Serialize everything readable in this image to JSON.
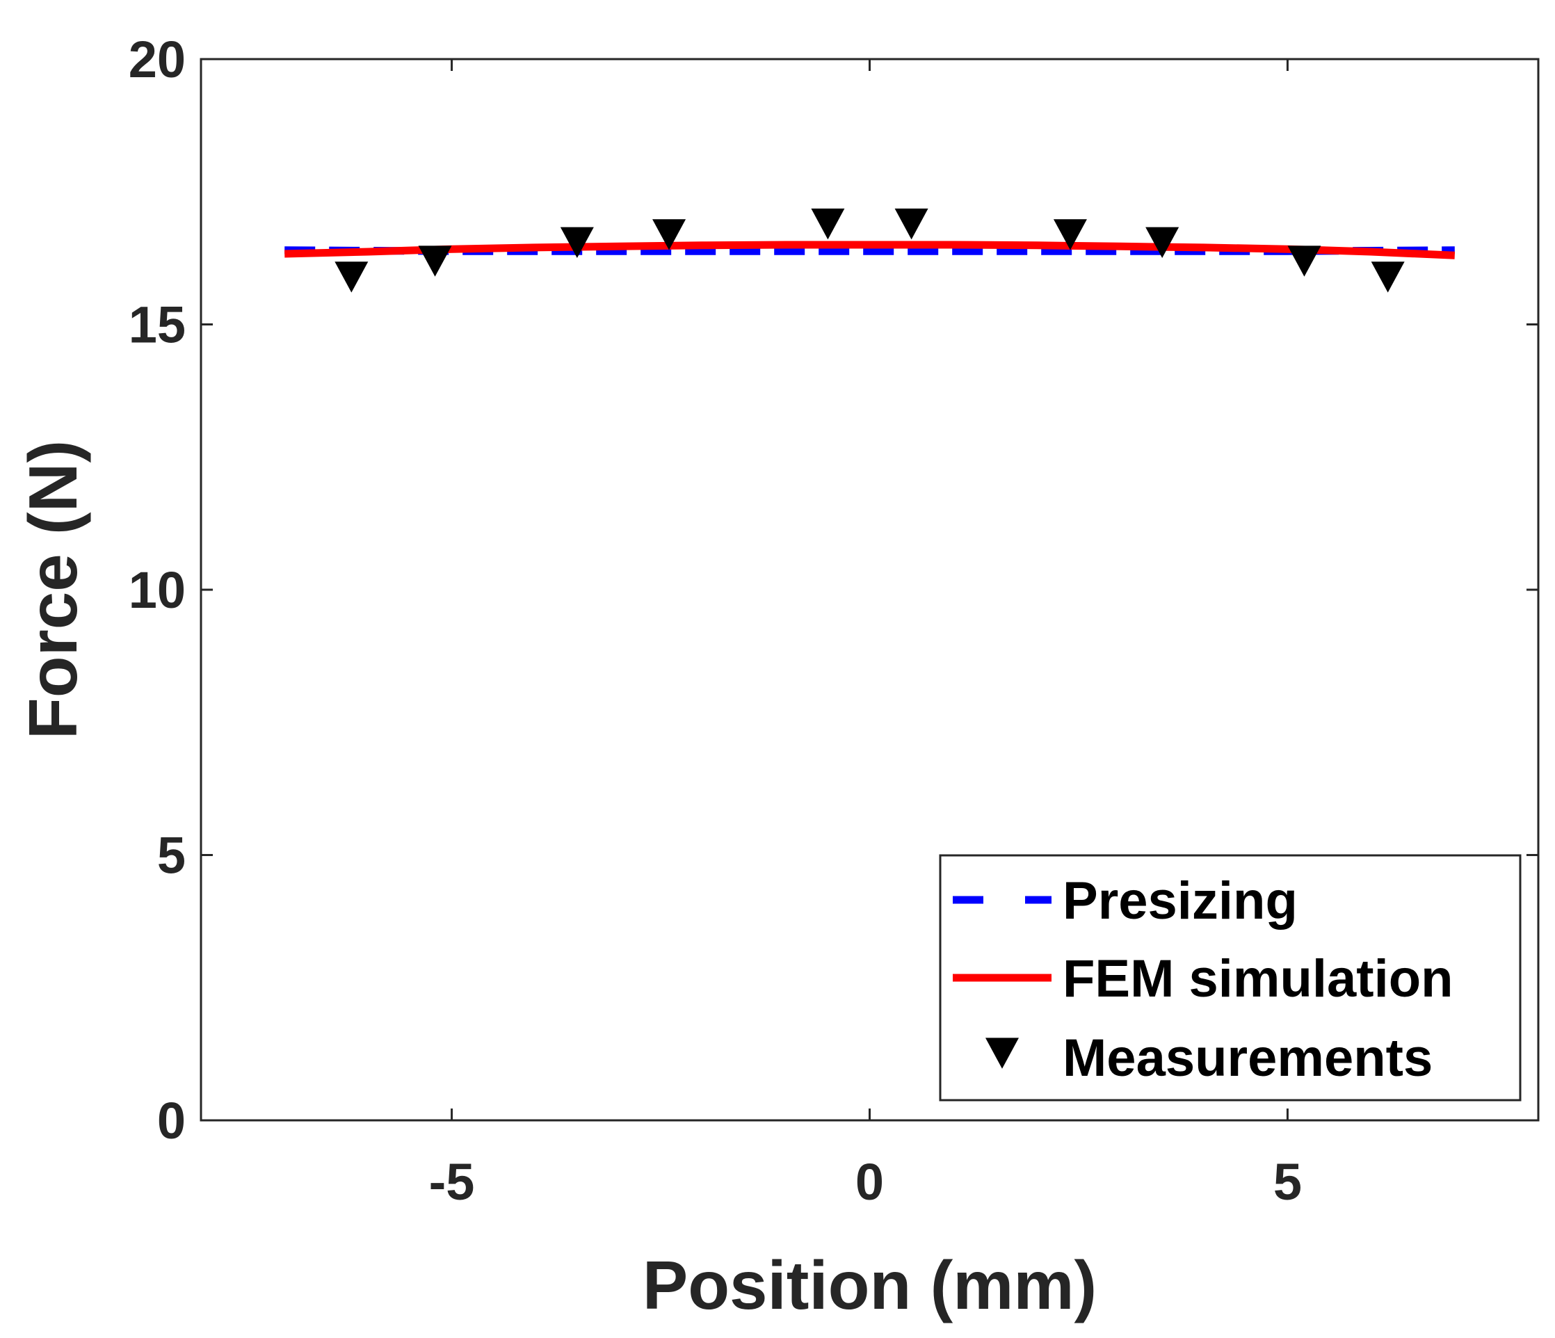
{
  "chart_data": {
    "type": "line",
    "xlabel": "Position (mm)",
    "ylabel": "Force (N)",
    "xlim": [
      -8,
      8
    ],
    "ylim": [
      0,
      20
    ],
    "xticks": [
      -5,
      0,
      5
    ],
    "xtick_labels": [
      "-5",
      "0",
      "5"
    ],
    "yticks": [
      0,
      5,
      10,
      15,
      20
    ],
    "ytick_labels": [
      "0",
      "5",
      "10",
      "15",
      "20"
    ],
    "grid": false,
    "legend_position": "bottom-right",
    "series": [
      {
        "name": "Presizing",
        "style": "dashed",
        "color": "#0000ff",
        "x": [
          -7,
          -5,
          -3,
          -1,
          0,
          1,
          3,
          5,
          7
        ],
        "y": [
          16.4,
          16.38,
          16.38,
          16.38,
          16.38,
          16.38,
          16.38,
          16.38,
          16.4
        ]
      },
      {
        "name": "FEM simulation",
        "style": "solid",
        "color": "#ff0000",
        "x": [
          -7,
          -6,
          -5,
          -4,
          -3,
          -2,
          -1,
          0,
          1,
          2,
          3,
          4,
          5,
          6,
          7
        ],
        "y": [
          16.33,
          16.37,
          16.42,
          16.45,
          16.47,
          16.49,
          16.5,
          16.5,
          16.5,
          16.49,
          16.47,
          16.45,
          16.42,
          16.37,
          16.3
        ]
      },
      {
        "name": "Measurements",
        "style": "marker-triangle-down",
        "color": "#000000",
        "x": [
          -6.2,
          -5.2,
          -3.5,
          -2.4,
          -0.5,
          0.5,
          2.4,
          3.5,
          5.2,
          6.2
        ],
        "y": [
          15.9,
          16.2,
          16.55,
          16.7,
          16.9,
          16.9,
          16.7,
          16.55,
          16.2,
          15.9
        ]
      }
    ]
  }
}
